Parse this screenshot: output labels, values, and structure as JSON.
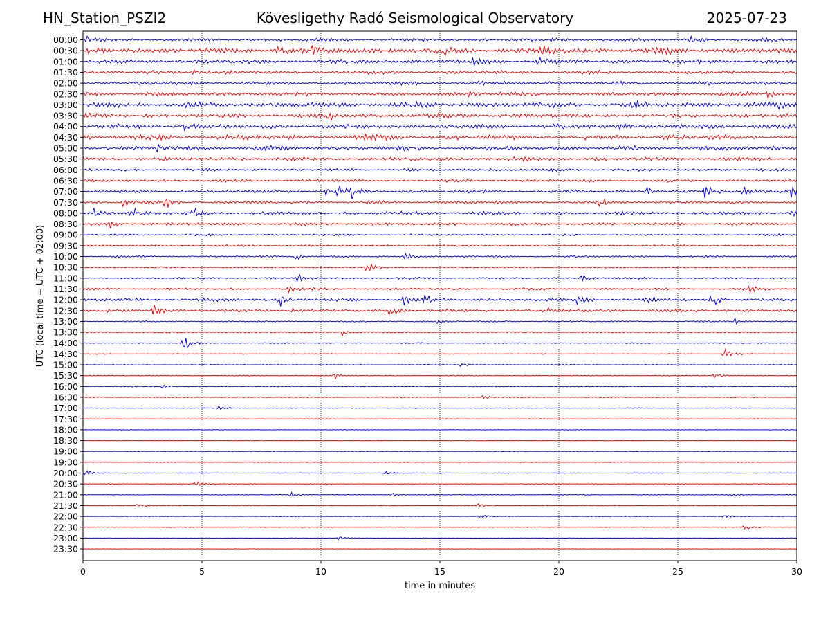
{
  "header": {
    "station": "HN_Station_PSZI2",
    "observatory": "Kövesligethy Radó Seismological Observatory",
    "date": "2025-07-23"
  },
  "chart_data": {
    "type": "line",
    "xlabel": "time in minutes",
    "ylabel": "UTC (local time = UTC + 02:00)",
    "xlim": [
      0,
      30
    ],
    "x_ticks": [
      0,
      5,
      10,
      15,
      20,
      25,
      30
    ],
    "x_tick_labels": [
      "0",
      "5",
      "10",
      "15",
      "20",
      "25",
      "30"
    ],
    "vertical_grid": "dotted at each 5-minute tick",
    "row_labels": [
      "00:00",
      "00:30",
      "01:00",
      "01:30",
      "02:00",
      "02:30",
      "03:00",
      "03:30",
      "04:00",
      "04:30",
      "05:00",
      "05:30",
      "06:00",
      "06:30",
      "07:00",
      "07:30",
      "08:00",
      "08:30",
      "09:00",
      "09:30",
      "10:00",
      "10:30",
      "11:00",
      "11:30",
      "12:00",
      "12:30",
      "13:00",
      "13:30",
      "14:00",
      "14:30",
      "15:00",
      "15:30",
      "16:00",
      "16:30",
      "17:00",
      "17:30",
      "18:00",
      "18:30",
      "19:00",
      "19:30",
      "20:00",
      "20:30",
      "21:00",
      "21:30",
      "22:00",
      "22:30",
      "23:00",
      "23:30"
    ],
    "series_colors": [
      "#0000ff",
      "#ff0000"
    ],
    "amplitude": [
      0.35,
      0.6,
      0.45,
      0.4,
      0.4,
      0.4,
      0.55,
      0.5,
      0.5,
      0.55,
      0.45,
      0.4,
      0.3,
      0.3,
      0.35,
      0.3,
      0.35,
      0.3,
      0.2,
      0.2,
      0.2,
      0.15,
      0.2,
      0.25,
      0.35,
      0.35,
      0.15,
      0.15,
      0.12,
      0.1,
      0.1,
      0.08,
      0.1,
      0.1,
      0.08,
      0.07,
      0.06,
      0.07,
      0.06,
      0.06,
      0.07,
      0.07,
      0.08,
      0.07,
      0.06,
      0.07,
      0.05,
      0.05
    ],
    "events": [
      {
        "row": 0,
        "t": 0.2,
        "a": 1.0
      },
      {
        "row": 0,
        "t": 25.6,
        "a": 1.2
      },
      {
        "row": 1,
        "t": 8.2,
        "a": 1.0
      },
      {
        "row": 1,
        "t": 9.6,
        "a": 1.3
      },
      {
        "row": 1,
        "t": 15.1,
        "a": 1.0
      },
      {
        "row": 1,
        "t": 19.3,
        "a": 1.5
      },
      {
        "row": 1,
        "t": 24.4,
        "a": 1.0
      },
      {
        "row": 2,
        "t": 16.4,
        "a": 1.3
      },
      {
        "row": 2,
        "t": 19.2,
        "a": 1.1
      },
      {
        "row": 3,
        "t": 4.7,
        "a": 1.3
      },
      {
        "row": 5,
        "t": 16.3,
        "a": 1.0
      },
      {
        "row": 5,
        "t": 28.8,
        "a": 1.0
      },
      {
        "row": 6,
        "t": 8.5,
        "a": 1.3
      },
      {
        "row": 6,
        "t": 23.2,
        "a": 1.1
      },
      {
        "row": 6,
        "t": 29.3,
        "a": 1.0
      },
      {
        "row": 7,
        "t": 10.4,
        "a": 1.0
      },
      {
        "row": 8,
        "t": 4.3,
        "a": 1.1
      },
      {
        "row": 8,
        "t": 22.4,
        "a": 1.1
      },
      {
        "row": 10,
        "t": 3.2,
        "a": 1.1
      },
      {
        "row": 14,
        "t": 10.2,
        "a": 1.2
      },
      {
        "row": 14,
        "t": 10.8,
        "a": 1.4
      },
      {
        "row": 14,
        "t": 11.3,
        "a": 1.8
      },
      {
        "row": 14,
        "t": 23.8,
        "a": 1.3
      },
      {
        "row": 14,
        "t": 26.2,
        "a": 2.0
      },
      {
        "row": 14,
        "t": 27.8,
        "a": 1.6
      },
      {
        "row": 14,
        "t": 29.8,
        "a": 1.4
      },
      {
        "row": 15,
        "t": 1.7,
        "a": 1.2
      },
      {
        "row": 15,
        "t": 3.5,
        "a": 1.4
      },
      {
        "row": 15,
        "t": 21.8,
        "a": 1.0
      },
      {
        "row": 16,
        "t": 0.5,
        "a": 1.5
      },
      {
        "row": 16,
        "t": 2.1,
        "a": 1.3
      },
      {
        "row": 16,
        "t": 4.7,
        "a": 1.0
      },
      {
        "row": 16,
        "t": 29.9,
        "a": 1.3
      },
      {
        "row": 17,
        "t": 1.2,
        "a": 1.4
      },
      {
        "row": 20,
        "t": 9.0,
        "a": 1.0
      },
      {
        "row": 20,
        "t": 13.5,
        "a": 1.0
      },
      {
        "row": 21,
        "t": 12.0,
        "a": 1.3
      },
      {
        "row": 22,
        "t": 9.1,
        "a": 1.3
      },
      {
        "row": 22,
        "t": 21.0,
        "a": 1.0
      },
      {
        "row": 23,
        "t": 8.7,
        "a": 1.0
      },
      {
        "row": 23,
        "t": 28.1,
        "a": 1.0
      },
      {
        "row": 24,
        "t": 8.3,
        "a": 1.6
      },
      {
        "row": 24,
        "t": 13.5,
        "a": 1.8
      },
      {
        "row": 24,
        "t": 14.4,
        "a": 1.5
      },
      {
        "row": 24,
        "t": 20.9,
        "a": 1.4
      },
      {
        "row": 24,
        "t": 23.8,
        "a": 1.3
      },
      {
        "row": 24,
        "t": 26.5,
        "a": 1.4
      },
      {
        "row": 25,
        "t": 3.0,
        "a": 1.2
      },
      {
        "row": 25,
        "t": 8.6,
        "a": 1.0
      },
      {
        "row": 25,
        "t": 13.0,
        "a": 1.5
      },
      {
        "row": 25,
        "t": 19.7,
        "a": 1.3
      },
      {
        "row": 26,
        "t": 15.0,
        "a": 0.8
      },
      {
        "row": 26,
        "t": 27.4,
        "a": 1.0
      },
      {
        "row": 27,
        "t": 10.9,
        "a": 1.0
      },
      {
        "row": 28,
        "t": 4.3,
        "a": 2.2
      },
      {
        "row": 29,
        "t": 27.0,
        "a": 1.5
      },
      {
        "row": 30,
        "t": 15.9,
        "a": 0.6
      },
      {
        "row": 31,
        "t": 10.6,
        "a": 0.8
      },
      {
        "row": 31,
        "t": 26.6,
        "a": 0.8
      },
      {
        "row": 32,
        "t": 3.4,
        "a": 0.8
      },
      {
        "row": 33,
        "t": 16.9,
        "a": 0.7
      },
      {
        "row": 34,
        "t": 5.8,
        "a": 1.2
      },
      {
        "row": 40,
        "t": 0.2,
        "a": 0.8
      },
      {
        "row": 40,
        "t": 12.7,
        "a": 0.8
      },
      {
        "row": 41,
        "t": 4.8,
        "a": 1.0
      },
      {
        "row": 42,
        "t": 8.8,
        "a": 0.8
      },
      {
        "row": 42,
        "t": 13.0,
        "a": 0.6
      },
      {
        "row": 42,
        "t": 27.2,
        "a": 0.7
      },
      {
        "row": 43,
        "t": 2.4,
        "a": 0.6
      },
      {
        "row": 43,
        "t": 16.6,
        "a": 0.6
      },
      {
        "row": 44,
        "t": 16.8,
        "a": 0.6
      },
      {
        "row": 44,
        "t": 27.0,
        "a": 0.6
      },
      {
        "row": 45,
        "t": 27.9,
        "a": 0.8
      },
      {
        "row": 46,
        "t": 10.8,
        "a": 0.7
      }
    ]
  }
}
